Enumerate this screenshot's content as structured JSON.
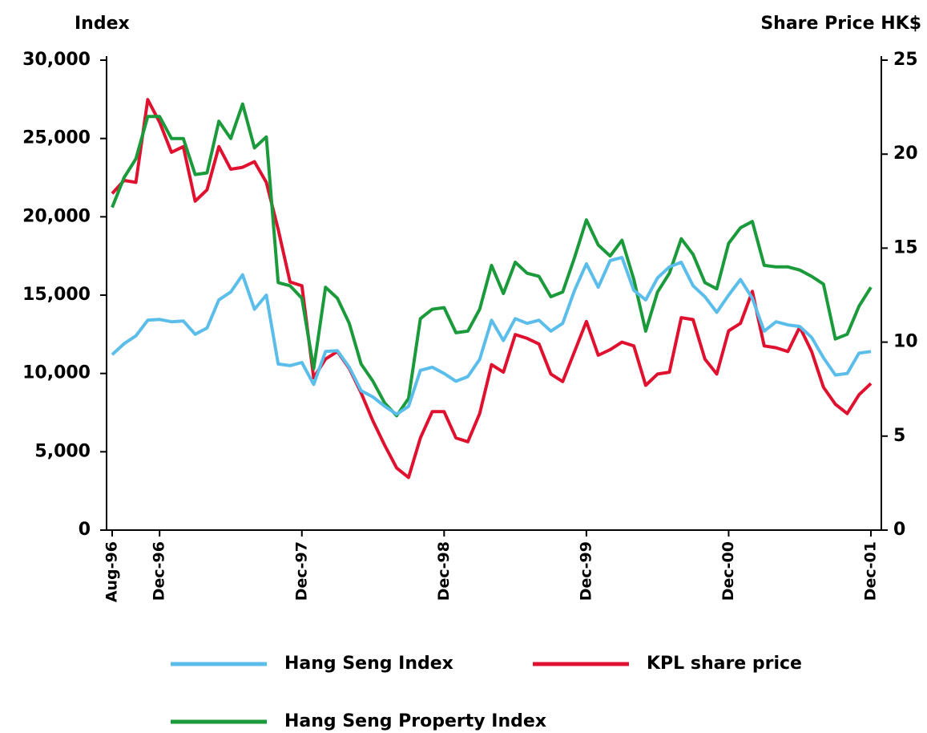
{
  "chart_data": {
    "type": "line",
    "ylabel": "Index",
    "y2label": "Share Price HK$",
    "categories": [
      "Aug-96",
      null,
      null,
      null,
      "Dec-96",
      null,
      null,
      null,
      null,
      null,
      null,
      null,
      null,
      null,
      null,
      null,
      "Dec-97",
      null,
      null,
      null,
      null,
      null,
      null,
      null,
      null,
      null,
      null,
      null,
      "Dec-98",
      null,
      null,
      null,
      null,
      null,
      null,
      null,
      null,
      null,
      null,
      null,
      "Dec-99",
      null,
      null,
      null,
      null,
      null,
      null,
      null,
      null,
      null,
      null,
      null,
      "Dec-00",
      null,
      null,
      null,
      null,
      null,
      null,
      null,
      null,
      null,
      null,
      null,
      "Dec-01"
    ],
    "ylim": [
      0,
      30000
    ],
    "yticks": [
      0,
      {
        "value": 5000,
        "label": "5,000"
      },
      {
        "value": 10000,
        "label": "10,000"
      },
      {
        "value": 15000,
        "label": "15,000"
      },
      {
        "value": 20000,
        "label": "20,000"
      },
      {
        "value": 25000,
        "label": "25,000"
      },
      {
        "value": 30000,
        "label": "30,000"
      }
    ],
    "y2lim": [
      0,
      25
    ],
    "y2ticks": [
      0,
      5,
      10,
      15,
      20,
      25
    ],
    "series": [
      {
        "name": "Hang Seng Index",
        "color": "#5bbde9",
        "values": [
          11200,
          11900,
          12400,
          13400,
          13450,
          13300,
          13350,
          12500,
          12900,
          14700,
          15200,
          16300,
          14100,
          15000,
          10600,
          10500,
          10700,
          9300,
          11400,
          11450,
          10400,
          8900,
          8500,
          7900,
          7400,
          7900,
          10200,
          10400,
          10000,
          9500,
          9800,
          10900,
          13400,
          12100,
          13500,
          13200,
          13400,
          12700,
          13200,
          15300,
          17000,
          15500,
          17200,
          17400,
          15300,
          14700,
          16100,
          16800,
          17100,
          15600,
          14900,
          13900,
          15000,
          16000,
          14800,
          12700,
          13300,
          13100,
          13000,
          12300,
          11000,
          9900,
          10000,
          11300,
          11400
        ]
      },
      {
        "name": "KPL share price",
        "color": "#e0102f",
        "axis": "y2",
        "values": [
          17.9,
          18.6,
          18.5,
          22.9,
          21.7,
          20.1,
          20.4,
          17.5,
          18.1,
          20.4,
          19.2,
          19.3,
          19.6,
          18.5,
          16.0,
          13.2,
          13.0,
          8.1,
          9.1,
          9.5,
          8.6,
          7.3,
          5.8,
          4.5,
          3.3,
          2.8,
          4.9,
          6.3,
          6.3,
          4.9,
          4.7,
          6.2,
          8.8,
          8.4,
          10.4,
          10.2,
          9.9,
          8.3,
          7.9,
          9.5,
          11.1,
          9.3,
          9.6,
          10.0,
          9.8,
          7.7,
          8.3,
          8.4,
          11.3,
          11.2,
          9.1,
          8.3,
          10.6,
          11.0,
          12.7,
          9.8,
          9.7,
          9.5,
          10.8,
          9.5,
          7.6,
          6.7,
          6.2,
          7.2,
          7.8
        ]
      },
      {
        "name": "Hang Seng Property Index",
        "color": "#1a9a3a",
        "values": [
          20600,
          22500,
          23700,
          26400,
          26400,
          25000,
          25000,
          22700,
          22800,
          26100,
          25000,
          27200,
          24400,
          25100,
          15800,
          15600,
          14800,
          10300,
          15500,
          14800,
          13200,
          10600,
          9500,
          8100,
          7300,
          8400,
          13500,
          14100,
          14200,
          12600,
          12700,
          14100,
          16900,
          15100,
          17100,
          16400,
          16200,
          14900,
          15200,
          17400,
          19800,
          18200,
          17500,
          18500,
          16000,
          12700,
          15200,
          16400,
          18600,
          17600,
          15800,
          15400,
          18300,
          19300,
          19700,
          16900,
          16800,
          16800,
          16600,
          16200,
          15700,
          12200,
          12500,
          14300,
          15500
        ]
      }
    ]
  }
}
